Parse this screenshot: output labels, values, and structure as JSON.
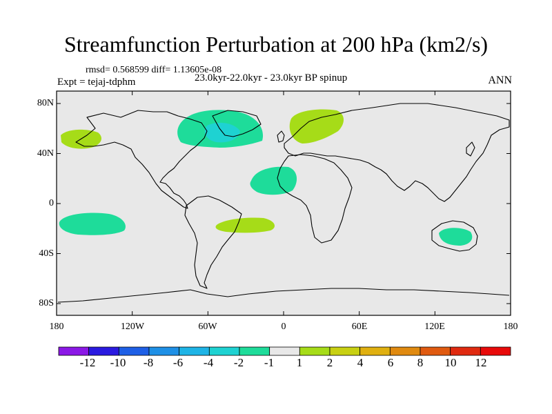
{
  "title": "Streamfunction Perturbation at 200 hPa (km2/s)",
  "stats": "rmsd= 0.568599  diff= 1.13605e-08",
  "experiment": "Expt = tejaj-tdphm",
  "period": "23.0kyr-22.0kyr - 23.0kyr BP spinup",
  "season": "ANN",
  "lat_axis": [
    "80N",
    "40N",
    "0",
    "40S",
    "80S"
  ],
  "lon_axis": [
    "180",
    "120W",
    "60W",
    "0",
    "60E",
    "120E",
    "180"
  ],
  "colorbar": {
    "labels": [
      "-12",
      "-10",
      "-8",
      "-6",
      "-4",
      "-2",
      "-1",
      "1",
      "2",
      "4",
      "6",
      "8",
      "10",
      "12"
    ],
    "colors": [
      "#8b18e6",
      "#2a1ae0",
      "#1e5fe6",
      "#1e90e6",
      "#1eb4e6",
      "#1ed2d2",
      "#1edc9a",
      "#e8e8e8",
      "#a6dc18",
      "#c8d012",
      "#e0b010",
      "#e08a10",
      "#e05a10",
      "#e02a10",
      "#e80a0a"
    ]
  },
  "colors": {
    "ocean_background": "#e8e8e8",
    "negative_anomaly": "#1edc9a",
    "negative_core": "#1ed2d2",
    "positive_anomaly": "#a6dc18"
  }
}
